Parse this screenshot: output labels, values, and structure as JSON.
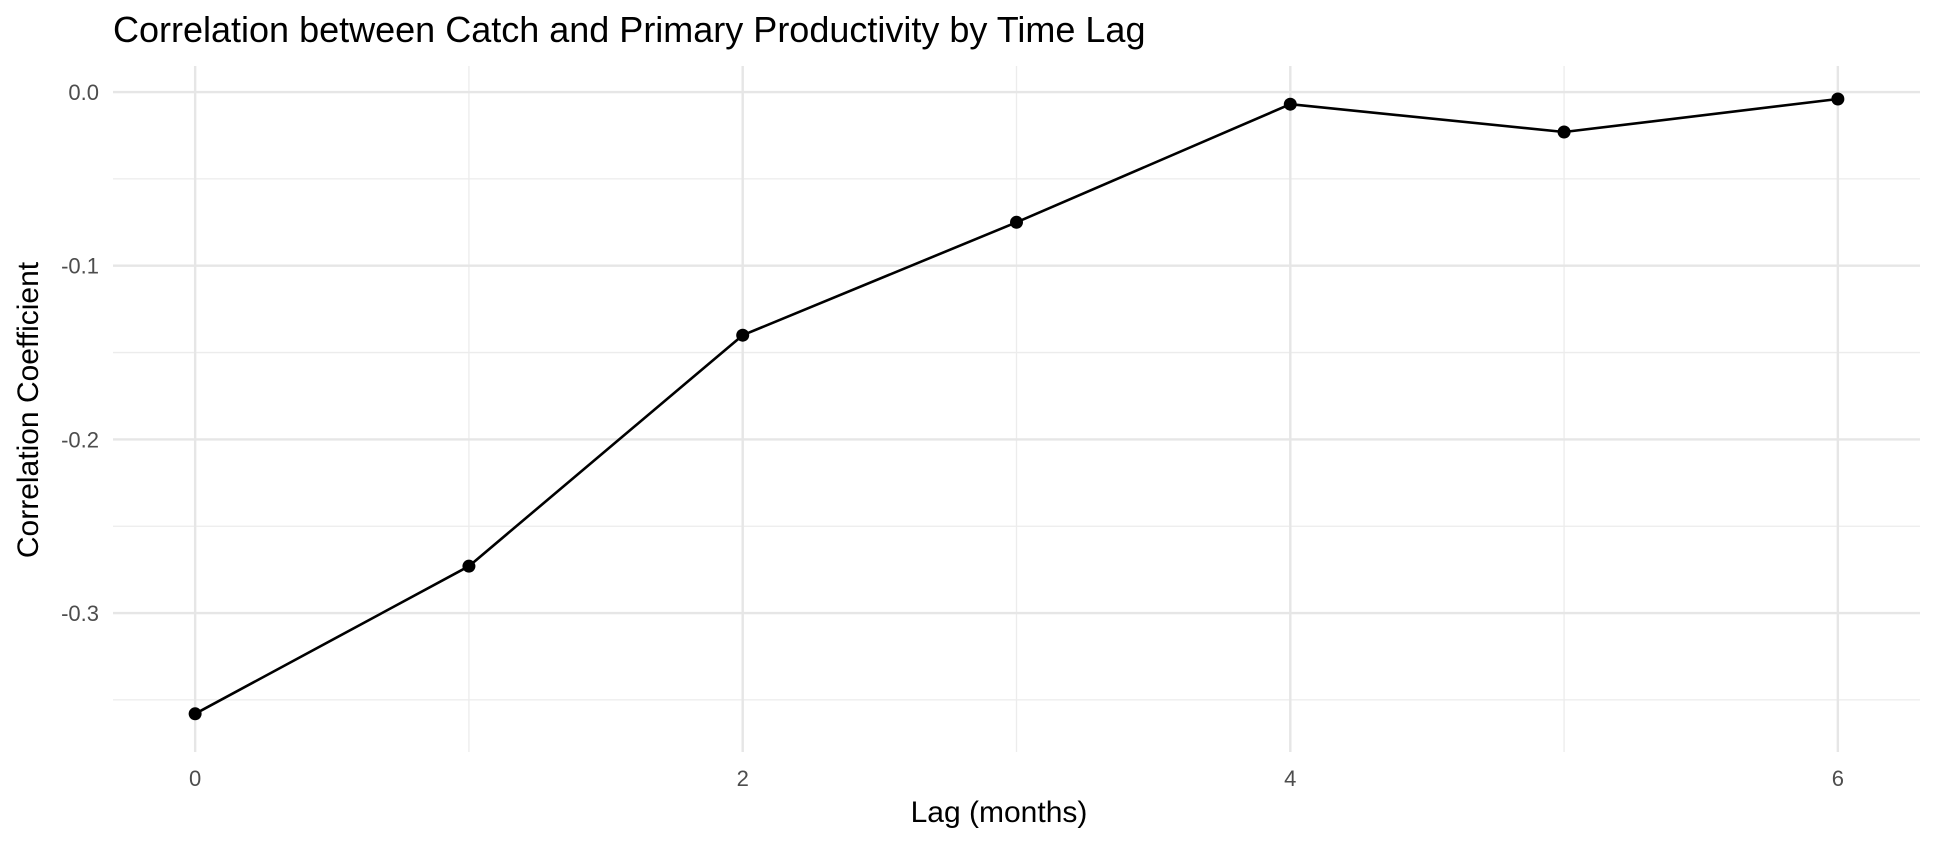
{
  "chart_data": {
    "type": "line",
    "title": "Correlation between Catch and Primary Productivity by Time Lag",
    "xlabel": "Lag (months)",
    "ylabel": "Correlation Coefficient",
    "x": [
      0,
      1,
      2,
      3,
      4,
      5,
      6
    ],
    "series": [
      {
        "values": [
          -0.358,
          -0.273,
          -0.14,
          -0.075,
          -0.007,
          -0.023,
          -0.004
        ]
      }
    ],
    "xlim": [
      -0.3,
      6.3
    ],
    "ylim": [
      -0.38,
      0.015
    ],
    "x_ticks": [
      0,
      2,
      4,
      6
    ],
    "x_tick_labels": [
      "0",
      "2",
      "4",
      "6"
    ],
    "x_minor_ticks": [
      1,
      3,
      5
    ],
    "y_ticks": [
      -0.3,
      -0.2,
      -0.1,
      0.0
    ],
    "y_tick_labels": [
      "-0.3",
      "-0.2",
      "-0.1",
      "0.0"
    ],
    "y_minor_ticks": [
      -0.35,
      -0.25,
      -0.15,
      -0.05
    ],
    "grid": true,
    "legend": "none",
    "colors": {
      "line": "#000000",
      "point": "#000000",
      "grid": "#e6e6e6",
      "tick_text": "#4d4d4d"
    }
  }
}
